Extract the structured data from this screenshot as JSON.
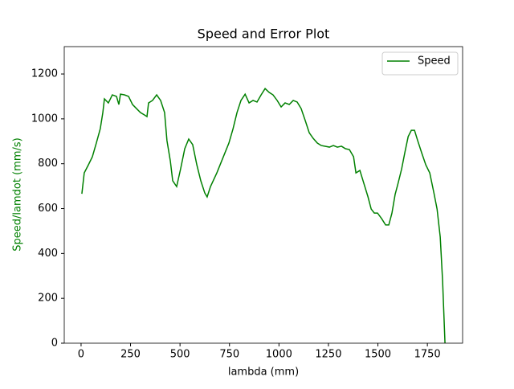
{
  "chart_data": {
    "type": "line",
    "title": "Speed and Error Plot",
    "xlabel": "lambda (mm)",
    "ylabel": "Speed/lamdot (mm/s)",
    "ylabel_color": "#008000",
    "x": [
      4,
      16,
      37,
      57,
      77,
      97,
      110,
      118,
      138,
      158,
      179,
      191,
      199,
      219,
      240,
      260,
      280,
      300,
      321,
      333,
      341,
      361,
      382,
      402,
      422,
      434,
      451,
      463,
      483,
      503,
      524,
      544,
      564,
      585,
      605,
      625,
      637,
      654,
      686,
      719,
      747,
      768,
      788,
      808,
      829,
      849,
      869,
      889,
      910,
      930,
      950,
      970,
      991,
      1011,
      1031,
      1052,
      1072,
      1092,
      1112,
      1133,
      1153,
      1173,
      1194,
      1214,
      1255,
      1275,
      1295,
      1316,
      1336,
      1356,
      1377,
      1389,
      1409,
      1425,
      1450,
      1466,
      1482,
      1498,
      1519,
      1539,
      1555,
      1571,
      1587,
      1600,
      1620,
      1636,
      1653,
      1669,
      1685,
      1701,
      1721,
      1742,
      1762,
      1783,
      1799,
      1815,
      1827,
      1839
    ],
    "series": [
      {
        "name": "Speed",
        "color": "#008000",
        "values": [
          666,
          759,
          795,
          831,
          892,
          956,
          1028,
          1089,
          1071,
          1107,
          1100,
          1064,
          1110,
          1107,
          1100,
          1064,
          1046,
          1028,
          1017,
          1010,
          1071,
          1082,
          1107,
          1082,
          1028,
          903,
          813,
          724,
          698,
          777,
          867,
          910,
          885,
          795,
          724,
          670,
          652,
          698,
          759,
          831,
          892,
          956,
          1028,
          1082,
          1110,
          1071,
          1082,
          1075,
          1107,
          1135,
          1118,
          1107,
          1082,
          1053,
          1071,
          1064,
          1082,
          1075,
          1046,
          992,
          938,
          913,
          892,
          881,
          874,
          881,
          874,
          878,
          867,
          863,
          831,
          759,
          770,
          724,
          652,
          598,
          580,
          580,
          555,
          527,
          527,
          580,
          663,
          706,
          777,
          849,
          921,
          949,
          949,
          903,
          849,
          795,
          759,
          670,
          598,
          473,
          276,
          0
        ]
      }
    ],
    "xlim": [
      -85,
      1928
    ],
    "ylim": [
      0,
      1322
    ],
    "xticks": [
      0,
      250,
      500,
      750,
      1000,
      1250,
      1500,
      1750
    ],
    "yticks": [
      0,
      200,
      400,
      600,
      800,
      1000,
      1200
    ],
    "legend": "upper right"
  }
}
